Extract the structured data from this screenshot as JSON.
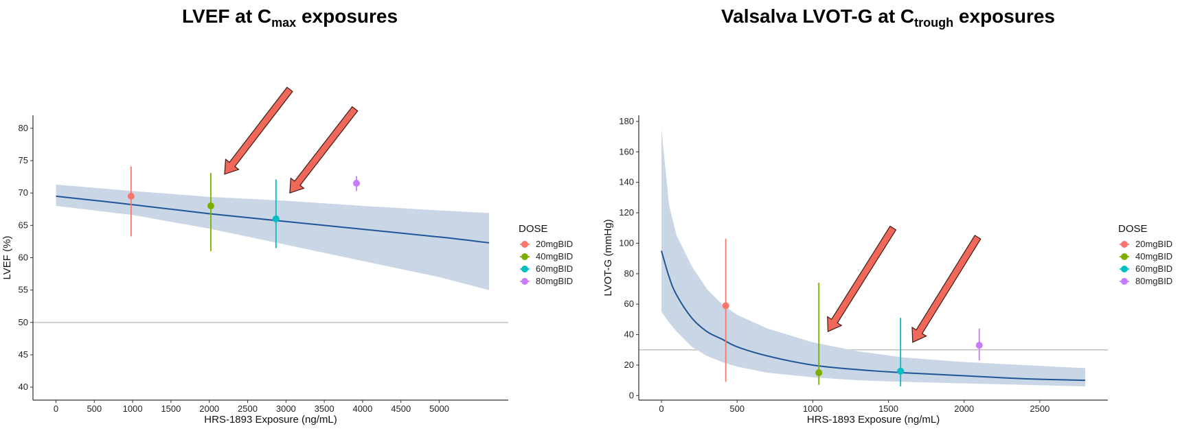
{
  "titles": {
    "left": {
      "main": "LVEF at C",
      "sub": "max",
      "tail": " exposures"
    },
    "right": {
      "main": "Valsalva LVOT-G at C",
      "sub": "trough",
      "tail": " exposures"
    }
  },
  "legend": {
    "title": "DOSE",
    "items": [
      {
        "label": "20mgBID",
        "color": "#F8766D"
      },
      {
        "label": "40mgBID",
        "color": "#7CAE00"
      },
      {
        "label": "60mgBID",
        "color": "#00BFC4"
      },
      {
        "label": "80mgBID",
        "color": "#C77CFF"
      }
    ]
  },
  "colors": {
    "ribbon": "#c9d6e5",
    "line": "#1f5596",
    "refline": "#c0c0c0",
    "arrow_fill": "#f0685a",
    "arrow_stroke": "#3a1a14"
  },
  "chart_data": [
    {
      "type": "line",
      "panel": "left",
      "title": "LVEF at Cmax exposures",
      "xlabel": "HRS-1893 Exposure (ng/mL)",
      "ylabel": "LVEF (%)",
      "xlim": [
        -300,
        5900
      ],
      "ylim": [
        38,
        82
      ],
      "xticks": [
        0,
        500,
        1000,
        1500,
        2000,
        2500,
        3000,
        3500,
        4000,
        4500,
        5000
      ],
      "yticks": [
        40,
        45,
        50,
        55,
        60,
        65,
        70,
        75,
        80
      ],
      "reference_line_y": 50,
      "fit": {
        "x": [
          0,
          1000,
          2000,
          3000,
          4000,
          5000,
          5650
        ],
        "y": [
          69.5,
          68.2,
          66.8,
          65.6,
          64.4,
          63.2,
          62.3
        ]
      },
      "band": {
        "x": [
          0,
          1000,
          2000,
          3000,
          4000,
          5000,
          5650
        ],
        "lower": [
          68.0,
          66.6,
          64.5,
          62.0,
          59.5,
          57.0,
          55.0
        ],
        "upper": [
          71.3,
          70.3,
          69.4,
          68.8,
          68.0,
          67.3,
          66.9
        ]
      },
      "points": [
        {
          "dose": "20mgBID",
          "x": 980,
          "y": 69.5,
          "lo": 63.3,
          "hi": 74.1
        },
        {
          "dose": "40mgBID",
          "x": 2020,
          "y": 68.0,
          "lo": 61.0,
          "hi": 73.1
        },
        {
          "dose": "60mgBID",
          "x": 2870,
          "y": 66.0,
          "lo": 61.5,
          "hi": 72.1
        },
        {
          "dose": "80mgBID",
          "x": 3920,
          "y": 71.5,
          "lo": 70.3,
          "hi": 72.6
        }
      ],
      "arrows": [
        {
          "from": [
            3050,
            86.0
          ],
          "to": [
            2200,
            72.9
          ]
        },
        {
          "from": [
            3900,
            83.0
          ],
          "to": [
            3050,
            70.0
          ]
        }
      ],
      "legend": "right"
    },
    {
      "type": "line",
      "panel": "right",
      "title": "Valsalva LVOT-G at Ctrough exposures",
      "xlabel": "HRS-1893 Exposure (ng/mL)",
      "ylabel": "LVOT-G (mmHg)",
      "xlim": [
        -150,
        2950
      ],
      "ylim": [
        -3,
        184
      ],
      "xticks": [
        0,
        500,
        1000,
        1500,
        2000,
        2500
      ],
      "yticks": [
        0,
        20,
        40,
        60,
        80,
        100,
        120,
        140,
        160,
        180
      ],
      "reference_line_y": 30,
      "fit": {
        "x": [
          0,
          50,
          100,
          200,
          300,
          400,
          500,
          700,
          1000,
          1300,
          1600,
          2000,
          2400,
          2800
        ],
        "y": [
          95,
          78,
          66,
          51,
          42,
          37,
          32,
          26,
          20,
          17,
          15,
          13,
          11,
          10
        ]
      },
      "band": {
        "x": [
          0,
          50,
          100,
          200,
          300,
          400,
          500,
          700,
          1000,
          1300,
          1600,
          2000,
          2400,
          2800
        ],
        "lower": [
          55,
          48,
          42,
          32,
          26,
          22,
          19,
          15,
          12,
          10,
          9,
          8,
          7,
          6
        ],
        "upper": [
          175,
          125,
          105,
          85,
          70,
          60,
          53,
          44,
          35,
          29,
          25,
          22,
          20,
          18
        ]
      },
      "points": [
        {
          "dose": "20mgBID",
          "x": 425,
          "y": 59,
          "lo": 9,
          "hi": 103
        },
        {
          "dose": "40mgBID",
          "x": 1040,
          "y": 15,
          "lo": 7,
          "hi": 74
        },
        {
          "dose": "60mgBID",
          "x": 1580,
          "y": 16,
          "lo": 6,
          "hi": 51
        },
        {
          "dose": "80mgBID",
          "x": 2100,
          "y": 33,
          "lo": 23,
          "hi": 44
        }
      ],
      "arrows": [
        {
          "from": [
            1530,
            110
          ],
          "to": [
            1100,
            42
          ]
        },
        {
          "from": [
            2090,
            104
          ],
          "to": [
            1660,
            35
          ]
        }
      ],
      "legend": "right"
    }
  ]
}
